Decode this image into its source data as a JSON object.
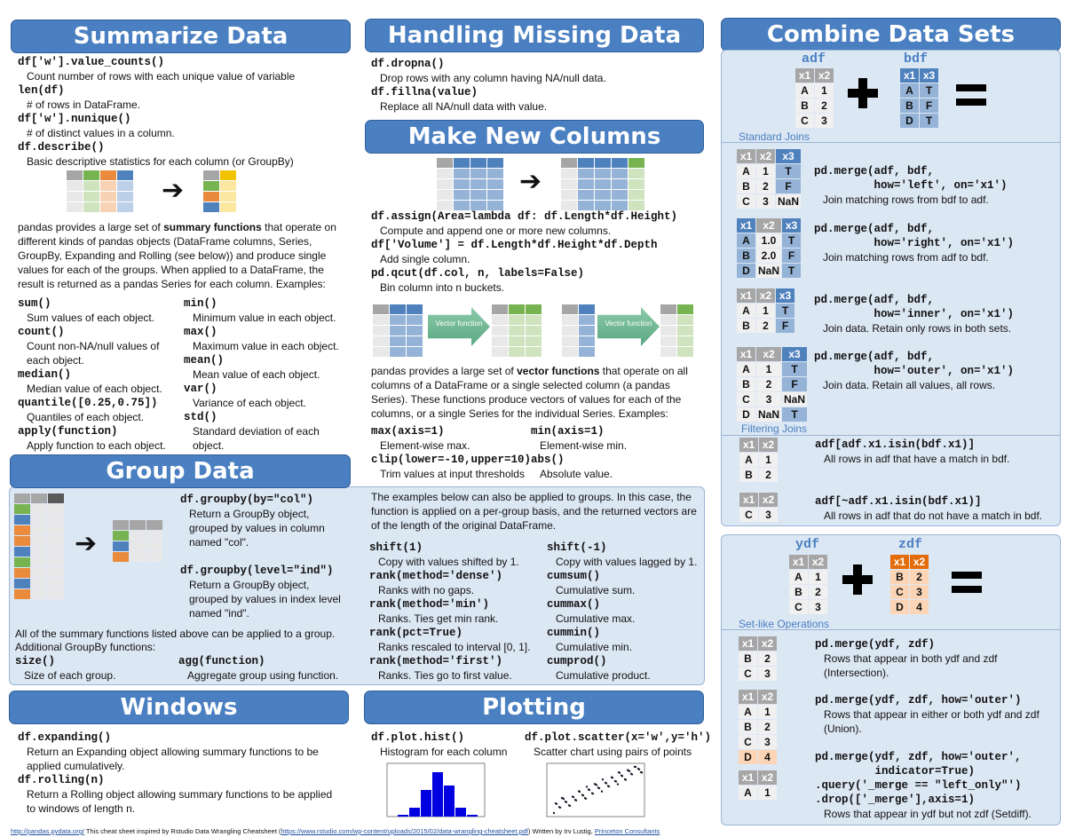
{
  "headers": {
    "summarize": "Summarize Data",
    "missing": "Handling Missing Data",
    "newcols": "Make New Columns",
    "combine": "Combine Data Sets",
    "group": "Group Data",
    "windows": "Windows",
    "plotting": "Plotting"
  },
  "summarize": {
    "items": [
      {
        "code": "df['w'].value_counts()",
        "desc": "Count number of rows with each unique value of variable"
      },
      {
        "code": "len(df)",
        "desc": "# of rows in DataFrame."
      },
      {
        "code": "df['w'].nunique()",
        "desc": "# of distinct values in a column."
      },
      {
        "code": "df.describe()",
        "desc": "Basic descriptive statistics for each column (or GroupBy)"
      }
    ],
    "para_pre": "pandas provides a large set of ",
    "para_bold": "summary functions",
    "para_post": " that operate on different kinds of pandas objects (DataFrame columns, Series, GroupBy, Expanding and Rolling (see below)) and produce single values for each of the groups. When applied to a DataFrame, the result is returned as a pandas Series for each column. Examples:",
    "left": [
      {
        "code": "sum()",
        "desc": "Sum values of each object."
      },
      {
        "code": "count()",
        "desc": "Count non-NA/null values of each object."
      },
      {
        "code": "median()",
        "desc": "Median value of each object."
      },
      {
        "code": "quantile([0.25,0.75])",
        "desc": "Quantiles of each object."
      },
      {
        "code": "apply(function)",
        "desc": "Apply function to each object."
      }
    ],
    "right": [
      {
        "code": "min()",
        "desc": "Minimum value in each object."
      },
      {
        "code": "max()",
        "desc": "Maximum value in each object."
      },
      {
        "code": "mean()",
        "desc": "Mean value of each object."
      },
      {
        "code": "var()",
        "desc": "Variance of each object."
      },
      {
        "code": "std()",
        "desc": "Standard deviation of each object."
      }
    ]
  },
  "missing": {
    "items": [
      {
        "code": "df.dropna()",
        "desc": "Drop rows with any column having NA/null data."
      },
      {
        "code": "df.fillna(value)",
        "desc": "Replace all NA/null data with value."
      }
    ]
  },
  "newcols": {
    "items": [
      {
        "code": "df.assign(Area=lambda df: df.Length*df.Height)",
        "desc": "Compute and append one or more new columns."
      },
      {
        "code": "df['Volume'] = df.Length*df.Height*df.Depth",
        "desc": "Add single column."
      },
      {
        "code": "pd.qcut(df.col, n, labels=False)",
        "desc": "Bin column into n buckets."
      }
    ],
    "vector_label": "Vector function",
    "para_pre": "pandas provides a large set of ",
    "para_bold": "vector functions",
    "para_post": " that operate on all columns of a DataFrame or a single selected column (a pandas Series). These functions produce vectors of values for each of the columns, or a single Series for the individual Series. Examples:",
    "left": [
      {
        "code": "max(axis=1)",
        "desc": "Element-wise max."
      },
      {
        "code": "clip(lower=-10,upper=10)",
        "desc": "Trim values at input thresholds"
      }
    ],
    "right": [
      {
        "code": "min(axis=1)",
        "desc": "Element-wise min."
      },
      {
        "code": "abs()",
        "desc": "Absolute value."
      }
    ]
  },
  "group": {
    "items": [
      {
        "code": "df.groupby(by=\"col\")",
        "desc": "Return a GroupBy object, grouped by values in column named \"col\"."
      },
      {
        "code": "df.groupby(level=\"ind\")",
        "desc": "Return a GroupBy object, grouped by values in index level named \"ind\"."
      }
    ],
    "note1": "All of the summary functions listed above can be applied to a group.",
    "note2": "Additional GroupBy functions:",
    "extra_left": {
      "code": "size()",
      "desc": "Size of each group."
    },
    "extra_right": {
      "code": "agg(function)",
      "desc": "Aggregate group using function."
    },
    "para": "The examples below can also be applied to groups. In this case, the function is applied on a per-group basis, and the returned vectors are of the length of the original DataFrame.",
    "left": [
      {
        "code": "shift(1)",
        "desc": "Copy with values shifted by 1."
      },
      {
        "code": "rank(method='dense')",
        "desc": "Ranks with no gaps."
      },
      {
        "code": "rank(method='min')",
        "desc": "Ranks. Ties get min rank."
      },
      {
        "code": "rank(pct=True)",
        "desc": "Ranks rescaled to interval [0, 1]."
      },
      {
        "code": "rank(method='first')",
        "desc": "Ranks. Ties go to first value."
      }
    ],
    "right": [
      {
        "code": "shift(-1)",
        "desc": "Copy with values lagged by 1."
      },
      {
        "code": "cumsum()",
        "desc": "Cumulative sum."
      },
      {
        "code": "cummax()",
        "desc": "Cumulative max."
      },
      {
        "code": "cummin()",
        "desc": "Cumulative min."
      },
      {
        "code": "cumprod()",
        "desc": "Cumulative product."
      }
    ]
  },
  "windows": {
    "items": [
      {
        "code": "df.expanding()",
        "desc": "Return an Expanding object allowing summary functions to be applied cumulatively."
      },
      {
        "code": "df.rolling(n)",
        "desc": "Return a Rolling object allowing summary functions to be applied to windows of length n."
      }
    ]
  },
  "plotting": {
    "hist": {
      "code": "df.plot.hist()",
      "desc": "Histogram for each column"
    },
    "scatter": {
      "code": "df.plot.scatter(x='w',y='h')",
      "desc": "Scatter chart using pairs of points"
    }
  },
  "combine": {
    "adf_name": "adf",
    "bdf_name": "bdf",
    "ydf_name": "ydf",
    "zdf_name": "zdf",
    "standard_joins": "Standard Joins",
    "filtering_joins": "Filtering Joins",
    "setlike": "Set-like Operations",
    "tables": {
      "adf": {
        "cols": [
          "x1",
          "x2"
        ],
        "hdr": "gg",
        "rows": [
          [
            "A",
            "1"
          ],
          [
            "B",
            "2"
          ],
          [
            "C",
            "3"
          ]
        ],
        "fill": [
          "gg",
          "gg",
          "gg"
        ]
      },
      "bdf": {
        "cols": [
          "x1",
          "x3"
        ],
        "hdr": "bb",
        "rows": [
          [
            "A",
            "T"
          ],
          [
            "B",
            "F"
          ],
          [
            "D",
            "T"
          ]
        ],
        "fill": [
          "bb",
          "bb",
          "bb"
        ]
      },
      "left": {
        "cols": [
          "x1",
          "x2",
          "x3"
        ],
        "hdr": "ggb",
        "rows": [
          [
            "A",
            "1",
            "T"
          ],
          [
            "B",
            "2",
            "F"
          ],
          [
            "C",
            "3",
            "NaN"
          ]
        ],
        "fill": [
          "ggb",
          "ggb",
          "ggg"
        ]
      },
      "right": {
        "cols": [
          "x1",
          "x2",
          "x3"
        ],
        "hdr": "bgb",
        "rows": [
          [
            "A",
            "1.0",
            "T"
          ],
          [
            "B",
            "2.0",
            "F"
          ],
          [
            "D",
            "NaN",
            "T"
          ]
        ],
        "fill": [
          "bgb",
          "bgb",
          "bgb"
        ]
      },
      "inner": {
        "cols": [
          "x1",
          "x2",
          "x3"
        ],
        "hdr": "ggb",
        "rows": [
          [
            "A",
            "1",
            "T"
          ],
          [
            "B",
            "2",
            "F"
          ]
        ],
        "fill": [
          "ggb",
          "ggb"
        ]
      },
      "outer": {
        "cols": [
          "x1",
          "x2",
          "x3"
        ],
        "hdr": "ggb",
        "rows": [
          [
            "A",
            "1",
            "T"
          ],
          [
            "B",
            "2",
            "F"
          ],
          [
            "C",
            "3",
            "NaN"
          ],
          [
            "D",
            "NaN",
            "T"
          ]
        ],
        "fill": [
          "ggb",
          "ggb",
          "ggg",
          "ggb"
        ]
      },
      "semi": {
        "cols": [
          "x1",
          "x2"
        ],
        "hdr": "gg",
        "rows": [
          [
            "A",
            "1"
          ],
          [
            "B",
            "2"
          ]
        ],
        "fill": [
          "gg",
          "gg"
        ]
      },
      "anti": {
        "cols": [
          "x1",
          "x2"
        ],
        "hdr": "gg",
        "rows": [
          [
            "C",
            "3"
          ]
        ],
        "fill": [
          "gg"
        ]
      },
      "ydf": {
        "cols": [
          "x1",
          "x2"
        ],
        "hdr": "gg",
        "rows": [
          [
            "A",
            "1"
          ],
          [
            "B",
            "2"
          ],
          [
            "C",
            "3"
          ]
        ],
        "fill": [
          "gg",
          "gg",
          "gg"
        ]
      },
      "zdf": {
        "cols": [
          "x1",
          "x2"
        ],
        "hdr": "oo",
        "rows": [
          [
            "B",
            "2"
          ],
          [
            "C",
            "3"
          ],
          [
            "D",
            "4"
          ]
        ],
        "fill": [
          "oo",
          "oo",
          "oo"
        ]
      },
      "inter": {
        "cols": [
          "x1",
          "x2"
        ],
        "hdr": "gg",
        "rows": [
          [
            "B",
            "2"
          ],
          [
            "C",
            "3"
          ]
        ],
        "fill": [
          "gg",
          "gg"
        ]
      },
      "union": {
        "cols": [
          "x1",
          "x2"
        ],
        "hdr": "gg",
        "rows": [
          [
            "A",
            "1"
          ],
          [
            "B",
            "2"
          ],
          [
            "C",
            "3"
          ],
          [
            "D",
            "4"
          ]
        ],
        "fill": [
          "gg",
          "gg",
          "gg",
          "oo"
        ]
      },
      "setdiff": {
        "cols": [
          "x1",
          "x2"
        ],
        "hdr": "gg",
        "rows": [
          [
            "A",
            "1"
          ]
        ],
        "fill": [
          "gg"
        ]
      }
    },
    "joins": [
      {
        "code": "pd.merge(adf, bdf,\n         how='left', on='x1')",
        "desc": "Join matching rows from bdf to adf."
      },
      {
        "code": "pd.merge(adf, bdf,\n         how='right', on='x1')",
        "desc": "Join matching rows from adf to bdf."
      },
      {
        "code": "pd.merge(adf, bdf,\n         how='inner', on='x1')",
        "desc": "Join data. Retain only rows in both sets."
      },
      {
        "code": "pd.merge(adf, bdf,\n         how='outer', on='x1')",
        "desc": "Join data. Retain all values, all rows."
      },
      {
        "code": "adf[adf.x1.isin(bdf.x1)]",
        "desc": "All rows in adf that have a match in bdf."
      },
      {
        "code": "adf[~adf.x1.isin(bdf.x1)]",
        "desc": "All rows in adf that do not have a match in bdf."
      }
    ],
    "sets": [
      {
        "code": "pd.merge(ydf, zdf)",
        "desc": "Rows that appear in both ydf and zdf (Intersection)."
      },
      {
        "code": "pd.merge(ydf, zdf, how='outer')",
        "desc": "Rows that appear in either or both ydf and zdf (Union)."
      },
      {
        "code": "pd.merge(ydf, zdf, how='outer',\n         indicator=True)\n.query('_merge == \"left_only\"')\n.drop(['_merge'],axis=1)",
        "desc": "Rows that appear in ydf but not zdf (Setdiff)."
      }
    ]
  },
  "footer": {
    "link1": "http://pandas.pydata.org/",
    "text1": " This cheat sheet inspired by Rstudio Data Wrangling Cheatsheet (",
    "link2": "https://www.rstudio.com/wp-content/uploads/2015/02/data-wrangling-cheatsheet.pdf",
    "text2": ") Written by Irv Lustig, ",
    "link3": "Princeton Consultants"
  },
  "colors": {
    "header": "#4a7fc1",
    "panel": "#dce7f4",
    "blue": "#4f81bd",
    "gray": "#a6a6a6",
    "orange": "#e46c0a",
    "green": "#77b350"
  }
}
